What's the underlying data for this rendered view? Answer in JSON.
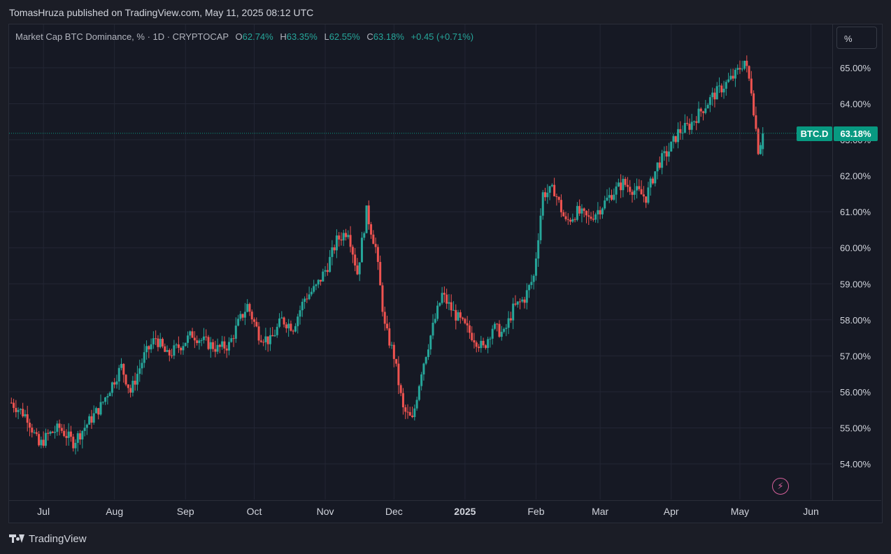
{
  "header": {
    "publisher": "TomasHruza published on TradingView.com, May 11, 2025 08:12 UTC"
  },
  "legend": {
    "title": "Market Cap BTC Dominance, % · 1D · CRYPTOCAP",
    "o_label": "O",
    "o_value": "62.74%",
    "h_label": "H",
    "h_value": "63.35%",
    "l_label": "L",
    "l_value": "62.55%",
    "c_label": "C",
    "c_value": "63.18%",
    "change": "+0.45 (+0.71%)"
  },
  "scale_button": "%",
  "last_price": {
    "symbol": "BTC.D",
    "value": "63.18%"
  },
  "footer": {
    "brand": "TradingView"
  },
  "colors": {
    "up": "#26a69a",
    "down": "#ef5350",
    "background": "#161924",
    "grid": "#232634",
    "label": "#089981"
  },
  "chart_data": {
    "type": "candlestick",
    "title": "Market Cap BTC Dominance, % · 1D · CRYPTOCAP",
    "ylim": [
      53.0,
      65.8
    ],
    "y_ticks": [
      "54.00%",
      "55.00%",
      "56.00%",
      "57.00%",
      "58.00%",
      "59.00%",
      "60.00%",
      "61.00%",
      "62.00%",
      "63.00%",
      "64.00%",
      "65.00%"
    ],
    "y_tick_values": [
      54,
      55,
      56,
      57,
      58,
      59,
      60,
      61,
      62,
      63,
      64,
      65
    ],
    "x_ticks": [
      "Jul",
      "Aug",
      "Sep",
      "Oct",
      "Nov",
      "Dec",
      "2025",
      "Feb",
      "Mar",
      "Apr",
      "May",
      "Jun"
    ],
    "x_tick_dates": [
      "2024-07-01",
      "2024-08-01",
      "2024-09-01",
      "2024-10-01",
      "2024-11-01",
      "2024-12-01",
      "2025-01-01",
      "2025-02-01",
      "2025-03-01",
      "2025-04-01",
      "2025-05-01",
      "2025-06-01"
    ],
    "x_range": [
      "2024-06-16",
      "2025-06-10"
    ],
    "last_value": 63.18,
    "close_series": [
      {
        "date": "2024-06-17",
        "close": 55.7
      },
      {
        "date": "2024-06-24",
        "close": 55.3
      },
      {
        "date": "2024-06-29",
        "close": 54.5
      },
      {
        "date": "2024-07-03",
        "close": 54.8
      },
      {
        "date": "2024-07-08",
        "close": 55.0
      },
      {
        "date": "2024-07-14",
        "close": 54.6
      },
      {
        "date": "2024-07-20",
        "close": 55.1
      },
      {
        "date": "2024-07-26",
        "close": 55.6
      },
      {
        "date": "2024-07-30",
        "close": 56.1
      },
      {
        "date": "2024-08-04",
        "close": 56.7
      },
      {
        "date": "2024-08-08",
        "close": 56.0
      },
      {
        "date": "2024-08-14",
        "close": 57.0
      },
      {
        "date": "2024-08-19",
        "close": 57.5
      },
      {
        "date": "2024-08-24",
        "close": 57.0
      },
      {
        "date": "2024-08-30",
        "close": 57.3
      },
      {
        "date": "2024-09-04",
        "close": 57.6
      },
      {
        "date": "2024-09-09",
        "close": 57.4
      },
      {
        "date": "2024-09-15",
        "close": 57.2
      },
      {
        "date": "2024-09-20",
        "close": 57.3
      },
      {
        "date": "2024-09-24",
        "close": 57.9
      },
      {
        "date": "2024-09-28",
        "close": 58.4
      },
      {
        "date": "2024-10-03",
        "close": 57.6
      },
      {
        "date": "2024-10-08",
        "close": 57.4
      },
      {
        "date": "2024-10-13",
        "close": 58.0
      },
      {
        "date": "2024-10-18",
        "close": 57.8
      },
      {
        "date": "2024-10-23",
        "close": 58.6
      },
      {
        "date": "2024-10-28",
        "close": 58.9
      },
      {
        "date": "2024-11-02",
        "close": 59.5
      },
      {
        "date": "2024-11-06",
        "close": 60.2
      },
      {
        "date": "2024-11-11",
        "close": 60.5
      },
      {
        "date": "2024-11-15",
        "close": 59.3
      },
      {
        "date": "2024-11-19",
        "close": 61.0
      },
      {
        "date": "2024-11-23",
        "close": 60.0
      },
      {
        "date": "2024-11-27",
        "close": 57.8
      },
      {
        "date": "2024-12-01",
        "close": 57.0
      },
      {
        "date": "2024-12-05",
        "close": 55.5
      },
      {
        "date": "2024-12-09",
        "close": 55.2
      },
      {
        "date": "2024-12-13",
        "close": 56.6
      },
      {
        "date": "2024-12-18",
        "close": 57.8
      },
      {
        "date": "2024-12-22",
        "close": 58.7
      },
      {
        "date": "2024-12-27",
        "close": 58.2
      },
      {
        "date": "2025-01-01",
        "close": 57.8
      },
      {
        "date": "2025-01-05",
        "close": 57.5
      },
      {
        "date": "2025-01-09",
        "close": 57.2
      },
      {
        "date": "2025-01-13",
        "close": 57.8
      },
      {
        "date": "2025-01-18",
        "close": 57.6
      },
      {
        "date": "2025-01-22",
        "close": 58.3
      },
      {
        "date": "2025-01-27",
        "close": 58.6
      },
      {
        "date": "2025-01-31",
        "close": 59.2
      },
      {
        "date": "2025-02-04",
        "close": 61.5
      },
      {
        "date": "2025-02-09",
        "close": 61.6
      },
      {
        "date": "2025-02-14",
        "close": 60.7
      },
      {
        "date": "2025-02-19",
        "close": 61.0
      },
      {
        "date": "2025-02-24",
        "close": 60.8
      },
      {
        "date": "2025-03-01",
        "close": 61.1
      },
      {
        "date": "2025-03-06",
        "close": 61.5
      },
      {
        "date": "2025-03-11",
        "close": 61.8
      },
      {
        "date": "2025-03-16",
        "close": 61.6
      },
      {
        "date": "2025-03-21",
        "close": 61.4
      },
      {
        "date": "2025-03-26",
        "close": 62.3
      },
      {
        "date": "2025-03-31",
        "close": 62.7
      },
      {
        "date": "2025-04-04",
        "close": 63.2
      },
      {
        "date": "2025-04-09",
        "close": 63.4
      },
      {
        "date": "2025-04-14",
        "close": 63.8
      },
      {
        "date": "2025-04-19",
        "close": 64.2
      },
      {
        "date": "2025-04-24",
        "close": 64.5
      },
      {
        "date": "2025-04-29",
        "close": 64.8
      },
      {
        "date": "2025-05-03",
        "close": 65.2
      },
      {
        "date": "2025-05-06",
        "close": 64.4
      },
      {
        "date": "2025-05-09",
        "close": 62.74
      },
      {
        "date": "2025-05-11",
        "close": 63.18
      }
    ]
  }
}
